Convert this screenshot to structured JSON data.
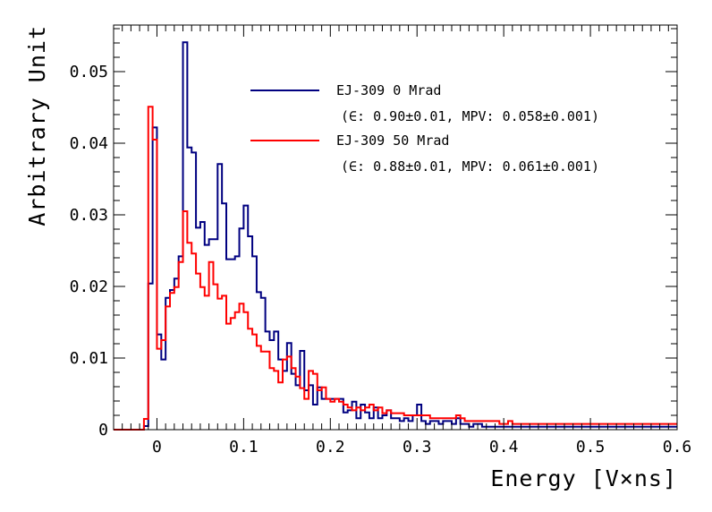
{
  "chart_data": {
    "type": "step",
    "xlabel": "Energy [V×ns]",
    "ylabel": "Arbitrary Unit",
    "xlim": [
      -0.05,
      0.6
    ],
    "ylim": [
      0,
      0.0565
    ],
    "grid": false,
    "legend_position": "top-right",
    "x_tick_labels": [
      "0",
      "0.1",
      "0.2",
      "0.3",
      "0.4",
      "0.5",
      "0.6"
    ],
    "y_tick_labels": [
      "0",
      "0.01",
      "0.02",
      "0.03",
      "0.04",
      "0.05"
    ],
    "bin_edges_start": -0.05,
    "bin_width": 0.005,
    "series": [
      {
        "name": "EJ-309 0 Mrad",
        "detail": "(∈: 0.90±0.01, MPV: 0.058±0.001)",
        "color": "#000080",
        "values": [
          0,
          0,
          0,
          0,
          0,
          0,
          0,
          0.0005,
          0.0204,
          0.0422,
          0.0133,
          0.0098,
          0.0184,
          0.0195,
          0.0211,
          0.0242,
          0.0541,
          0.0394,
          0.0387,
          0.0282,
          0.029,
          0.0258,
          0.0266,
          0.0266,
          0.0371,
          0.0316,
          0.0238,
          0.0238,
          0.0242,
          0.0281,
          0.0313,
          0.027,
          0.0242,
          0.0192,
          0.0184,
          0.0137,
          0.0125,
          0.0137,
          0.0098,
          0.0082,
          0.0121,
          0.0078,
          0.0062,
          0.011,
          0.0055,
          0.0062,
          0.0035,
          0.0059,
          0.0043,
          0.0043,
          0.0043,
          0.0043,
          0.0043,
          0.0024,
          0.0027,
          0.0039,
          0.0016,
          0.0035,
          0.0024,
          0.0016,
          0.0031,
          0.0016,
          0.002,
          0.0027,
          0.0016,
          0.0016,
          0.0012,
          0.0016,
          0.0012,
          0.002,
          0.0035,
          0.0012,
          0.0008,
          0.0012,
          0.0012,
          0.0008,
          0.0012,
          0.0012,
          0.0008,
          0.0016,
          0.0008,
          0.0008,
          0.0004,
          0.0008,
          0.0008,
          0.0004,
          0.0004,
          0.0004,
          0.0004,
          0.0004,
          0.0004,
          0.0004,
          0.0004,
          0.0004,
          0.0004,
          0.0004,
          0.0004,
          0.0004,
          0.0004,
          0.0004,
          0.0004,
          0.0004,
          0.0004,
          0.0004,
          0.0004,
          0.0004,
          0.0004,
          0.0004,
          0.0004,
          0.0004,
          0.0004,
          0.0004,
          0.0004,
          0.0004,
          0.0004,
          0.0004,
          0.0004,
          0.0004,
          0.0004,
          0.0004,
          0.0004,
          0.0004,
          0.0004,
          0.0004,
          0.0004,
          0.0004,
          0.0004,
          0.0004,
          0.0004,
          0.0004
        ]
      },
      {
        "name": "EJ-309 50 Mrad",
        "detail": "(∈: 0.88±0.01, MPV: 0.061±0.001)",
        "color": "#ff0000",
        "values": [
          0,
          0,
          0,
          0,
          0,
          0,
          0,
          0.0015,
          0.0451,
          0.0405,
          0.0113,
          0.0125,
          0.0172,
          0.0191,
          0.0199,
          0.0234,
          0.0305,
          0.0261,
          0.0246,
          0.0218,
          0.0199,
          0.0187,
          0.0234,
          0.0203,
          0.0183,
          0.0187,
          0.0148,
          0.0156,
          0.0164,
          0.0176,
          0.0164,
          0.0141,
          0.0133,
          0.0117,
          0.0109,
          0.0109,
          0.0086,
          0.0082,
          0.0066,
          0.0098,
          0.0102,
          0.0086,
          0.0074,
          0.0058,
          0.0043,
          0.0082,
          0.0078,
          0.0055,
          0.0059,
          0.0043,
          0.0039,
          0.0043,
          0.0039,
          0.0035,
          0.0031,
          0.0027,
          0.0031,
          0.0027,
          0.0031,
          0.0035,
          0.0027,
          0.0031,
          0.0023,
          0.0027,
          0.0023,
          0.0023,
          0.0023,
          0.002,
          0.002,
          0.002,
          0.002,
          0.002,
          0.002,
          0.0016,
          0.0016,
          0.0016,
          0.0016,
          0.0016,
          0.0016,
          0.002,
          0.0016,
          0.0012,
          0.0012,
          0.0012,
          0.0012,
          0.0012,
          0.0012,
          0.0012,
          0.0012,
          0.0008,
          0.0008,
          0.0012,
          0.0008,
          0.0008,
          0.0008,
          0.0008,
          0.0008,
          0.0008,
          0.0008,
          0.0008,
          0.0008,
          0.0008,
          0.0008,
          0.0008,
          0.0008,
          0.0008,
          0.0008,
          0.0008,
          0.0008,
          0.0008,
          0.0008,
          0.0008,
          0.0008,
          0.0008,
          0.0008,
          0.0008,
          0.0008,
          0.0008,
          0.0008,
          0.0008,
          0.0008,
          0.0008,
          0.0008,
          0.0008,
          0.0008,
          0.0008,
          0.0008,
          0.0008,
          0.0008,
          0.0008
        ]
      }
    ]
  }
}
